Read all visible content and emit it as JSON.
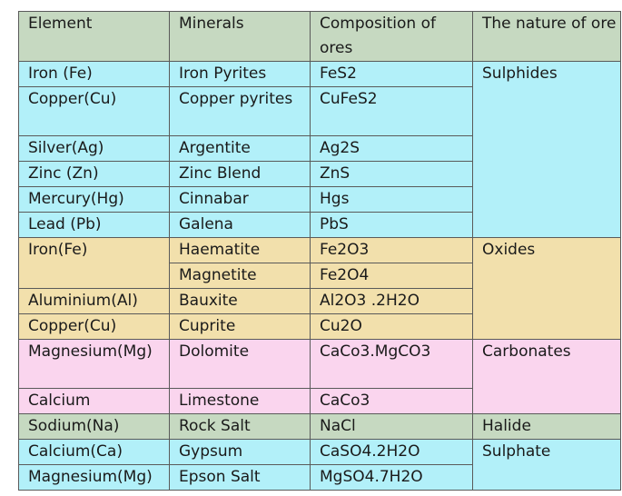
{
  "table": {
    "headers": [
      "Element",
      "Minerals",
      "Composition of ores",
      "The nature of ore"
    ],
    "groups": {
      "sulphides": "Sulphides",
      "oxides": "Oxides",
      "carbonates": "Carbonates",
      "halide": "Halide",
      "sulphate": "Sulphate"
    },
    "rows": [
      {
        "element": "Iron (Fe)",
        "mineral": "Iron Pyrites",
        "composition": "FeS2"
      },
      {
        "element": "Copper(Cu)",
        "mineral": "Copper pyrites",
        "composition": "CuFeS2"
      },
      {
        "element": "Silver(Ag)",
        "mineral": "Argentite",
        "composition": "Ag2S"
      },
      {
        "element": "Zinc (Zn)",
        "mineral": "Zinc Blend",
        "composition": "ZnS"
      },
      {
        "element": "Mercury(Hg)",
        "mineral": "Cinnabar",
        "composition": "Hgs"
      },
      {
        "element": "Lead (Pb)",
        "mineral": "Galena",
        "composition": "PbS"
      },
      {
        "element": "Iron(Fe)",
        "mineral": "Haematite",
        "composition": "Fe2O3"
      },
      {
        "element": "",
        "mineral": "Magnetite",
        "composition": "Fe2O4"
      },
      {
        "element": "Aluminium(Al)",
        "mineral": "Bauxite",
        "composition": "Al2O3 .2H2O"
      },
      {
        "element": "Copper(Cu)",
        "mineral": "Cuprite",
        "composition": "Cu2O"
      },
      {
        "element": "Magnesium(Mg)",
        "mineral": "Dolomite",
        "composition": "CaCo3.MgCO3"
      },
      {
        "element": "Calcium",
        "mineral": "Limestone",
        "composition": "CaCo3"
      },
      {
        "element": "Sodium(Na)",
        "mineral": "Rock Salt",
        "composition": "NaCl"
      },
      {
        "element": "Calcium(Ca)",
        "mineral": "Gypsum",
        "composition": "CaSO4.2H2O"
      },
      {
        "element": "Magnesium(Mg)",
        "mineral": "Epson Salt",
        "composition": "MgSO4.7H2O"
      }
    ]
  },
  "colors": {
    "header": "#c6d9c1",
    "sulphides": "#b2f0f9",
    "oxides": "#f2e0ac",
    "carbonates": "#fad5ee",
    "halide": "#c6d9c1",
    "sulphate": "#b2f0f9",
    "border": "#5a5a5a"
  }
}
